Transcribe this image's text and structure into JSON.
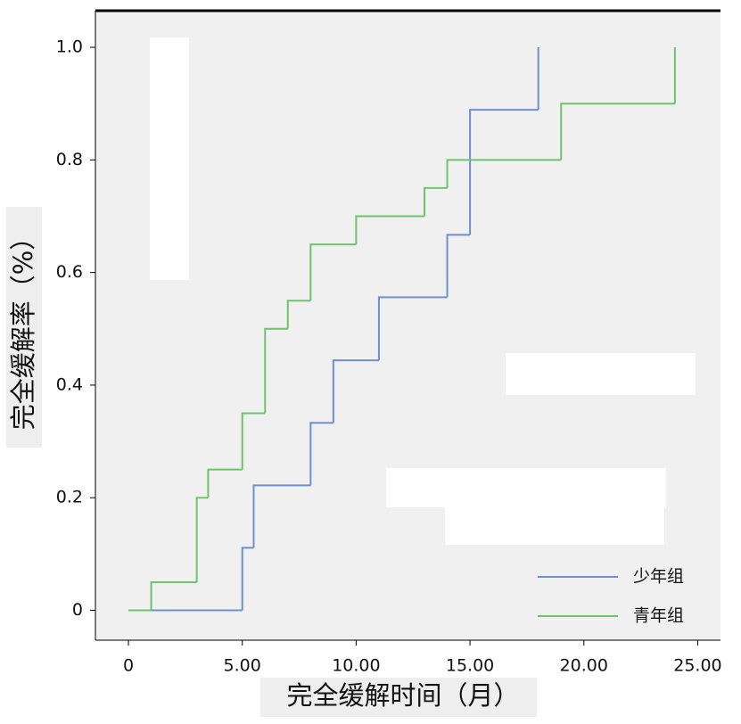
{
  "chart_data": {
    "type": "step",
    "x_label": "完全缓解时间（月）",
    "y_label": "完全缓解率（%）",
    "xlim": [
      -1.45,
      26
    ],
    "ylim": [
      -0.053,
      1.065
    ],
    "xticks": [
      0,
      {
        "value": 5,
        "label": "5.00"
      },
      {
        "value": 10,
        "label": "10.00"
      },
      {
        "value": 15,
        "label": "15.00"
      },
      {
        "value": 20,
        "label": "20.00"
      },
      {
        "value": 25,
        "label": "25.00"
      }
    ],
    "yticks": [
      0,
      0.2,
      0.4,
      0.6,
      0.8,
      {
        "value": 1,
        "label": "1.0"
      }
    ],
    "legend": "lower right",
    "series": [
      {
        "name": "少年组",
        "color": "#6f8fcf",
        "x": [
          0,
          5,
          5.5,
          8,
          9,
          11,
          14,
          15,
          18
        ],
        "values": [
          0,
          0.111,
          0.222,
          0.333,
          0.444,
          0.556,
          0.667,
          0.889,
          1
        ]
      },
      {
        "name": "青年组",
        "color": "#6cc46c",
        "x": [
          0,
          1,
          3,
          3.5,
          5,
          6,
          7,
          8,
          10,
          13,
          14,
          19,
          24
        ],
        "values": [
          0,
          0.05,
          0.2,
          0.25,
          0.35,
          0.5,
          0.55,
          0.65,
          0.7,
          0.75,
          0.8,
          0.9,
          1
        ]
      }
    ]
  }
}
